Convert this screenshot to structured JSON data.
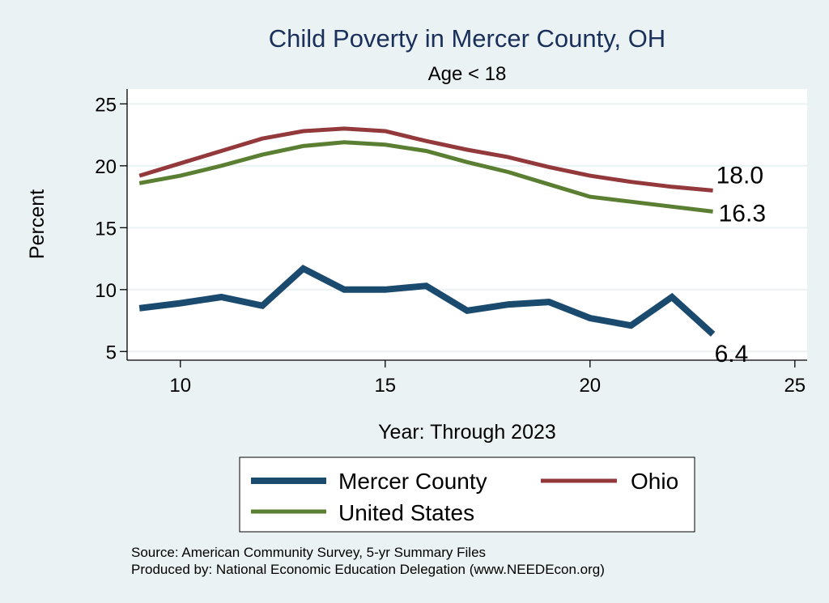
{
  "chart_data": {
    "type": "line",
    "title": "Child Poverty in Mercer County, OH",
    "subtitle": "Age < 18",
    "xlabel": "Year: Through 2023",
    "ylabel": "Percent",
    "xlim": [
      8.7,
      25.3
    ],
    "ylim": [
      4.3,
      26.2
    ],
    "xticks": [
      "10",
      "15",
      "20",
      "25"
    ],
    "yticks": [
      "5",
      "10",
      "15",
      "20",
      "25"
    ],
    "grid": true,
    "x": [
      9,
      10,
      11,
      12,
      13,
      14,
      15,
      16,
      17,
      18,
      19,
      20,
      21,
      22,
      23
    ],
    "series": [
      {
        "name": "Mercer County",
        "color": "#1b4a6f",
        "values": [
          8.5,
          8.9,
          9.4,
          8.7,
          11.7,
          10.0,
          10.0,
          10.3,
          8.3,
          8.8,
          9.0,
          7.7,
          7.1,
          9.4,
          6.4
        ],
        "end_label": "6.4"
      },
      {
        "name": "Ohio",
        "color": "#93393b",
        "values": [
          19.2,
          20.2,
          21.2,
          22.2,
          22.8,
          23.0,
          22.8,
          22.0,
          21.3,
          20.7,
          19.9,
          19.2,
          18.7,
          18.3,
          18.0
        ],
        "end_label": "18.0"
      },
      {
        "name": "United States",
        "color": "#5a7f32",
        "values": [
          18.6,
          19.2,
          20.0,
          20.9,
          21.6,
          21.9,
          21.7,
          21.2,
          20.3,
          19.5,
          18.5,
          17.5,
          17.1,
          16.7,
          16.3
        ],
        "end_label": "16.3"
      }
    ],
    "legend": {
      "position": "bottom",
      "entries": [
        "Mercer County",
        "Ohio",
        "United States"
      ]
    },
    "notes": [
      "Source: American Community Survey, 5-yr Summary Files",
      "Produced by: National Economic Education Delegation (www.NEEDEcon.org)"
    ],
    "colors": {
      "background": "#eaf2f3",
      "plot_background": "#ffffff",
      "title": "#1a2f5a"
    }
  }
}
